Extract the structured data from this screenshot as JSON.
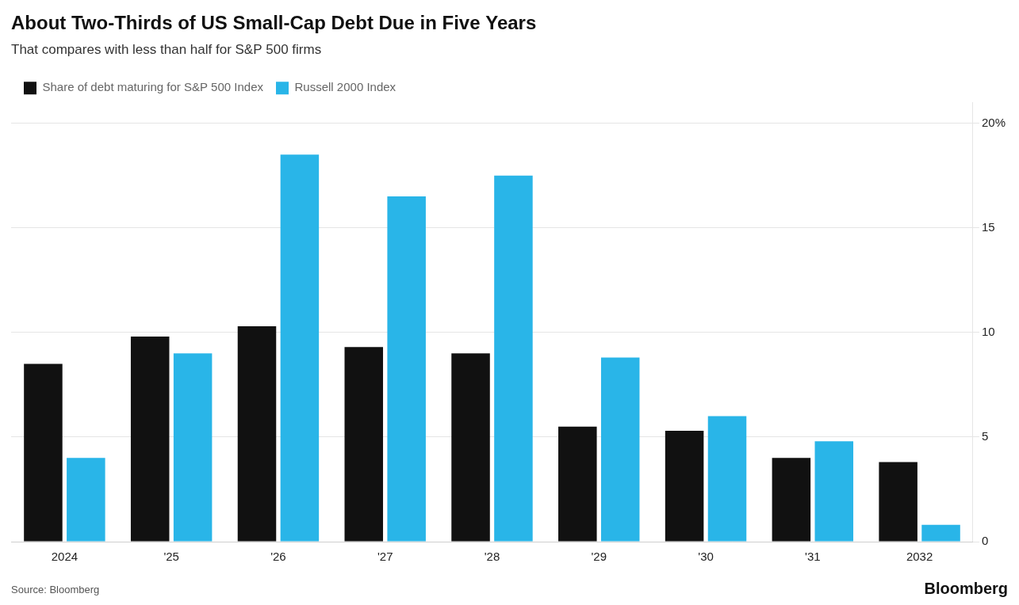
{
  "chart_data": {
    "type": "bar",
    "title": "About Two-Thirds of US Small-Cap Debt Due in Five Years",
    "subtitle": "That compares with less than half for S&P 500 firms",
    "annotations": [
      "Source: Bloomberg",
      "Bloomberg"
    ],
    "categories": [
      "2024",
      "'25",
      "'26",
      "'27",
      "'28",
      "'29",
      "'30",
      "'31",
      "2032"
    ],
    "series": [
      {
        "name": "Share of debt maturing for S&P 500 Index",
        "color": "#111111",
        "values": [
          8.5,
          9.8,
          10.3,
          9.3,
          9.0,
          5.5,
          5.3,
          4.0,
          3.8
        ]
      },
      {
        "name": "Russell 2000 Index",
        "color": "#29b5e8",
        "values": [
          4.0,
          9.0,
          18.5,
          16.5,
          17.5,
          8.8,
          6.0,
          4.8,
          0.8
        ]
      }
    ],
    "ylim": [
      0,
      21
    ],
    "yticks": [
      0,
      5,
      10,
      15,
      {
        "value": 20,
        "label": "20%"
      }
    ],
    "grid": true,
    "legend": "top-left"
  }
}
